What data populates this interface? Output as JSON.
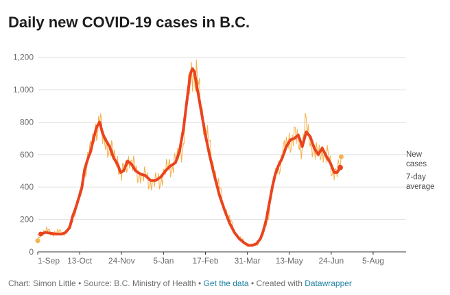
{
  "title": "Daily new COVID-19 cases in B.C.",
  "footer": {
    "credit": "Chart: Simon Little",
    "source": "Source: B.C. Ministry of Health",
    "get_data_link": "Get the data",
    "created_with_prefix": "Created with",
    "datawrapper_link": "Datawrapper",
    "separator": "•"
  },
  "colors": {
    "daily_line": "#f6b24f",
    "average_line": "#e94420",
    "grid": "#dedede",
    "axis": "#333333",
    "link": "#1d81a2"
  },
  "chart_data": {
    "type": "line",
    "title": "Daily new COVID-19 cases in B.C.",
    "xlabel": "",
    "ylabel": "",
    "x_ticks": [
      "1-Sep",
      "13-Oct",
      "24-Nov",
      "5-Jan",
      "17-Feb",
      "31-Mar",
      "13-May",
      "24-Jun",
      "5-Aug"
    ],
    "y_ticks": [
      "0",
      "200",
      "400",
      "600",
      "800",
      "1,000",
      "1,200"
    ],
    "ylim": [
      0,
      1300
    ],
    "x_range_days": [
      0,
      369
    ],
    "x_tick_days": [
      0,
      42,
      84,
      126,
      168,
      210,
      252,
      294,
      336
    ],
    "grid": true,
    "legend_placement": "right-end-labels",
    "series": [
      {
        "name": "New cases",
        "style": "thin",
        "anchors": [
          [
            0,
            60
          ],
          [
            2,
            100
          ],
          [
            5,
            120
          ],
          [
            9,
            135
          ],
          [
            14,
            110
          ],
          [
            20,
            125
          ],
          [
            25,
            115
          ],
          [
            30,
            130
          ],
          [
            35,
            200
          ],
          [
            38,
            270
          ],
          [
            41,
            330
          ],
          [
            44,
            380
          ],
          [
            47,
            500
          ],
          [
            50,
            580
          ],
          [
            53,
            620
          ],
          [
            56,
            700
          ],
          [
            59,
            780
          ],
          [
            62,
            810
          ],
          [
            65,
            700
          ],
          [
            70,
            660
          ],
          [
            75,
            600
          ],
          [
            80,
            560
          ],
          [
            84,
            470
          ],
          [
            88,
            520
          ],
          [
            92,
            580
          ],
          [
            96,
            520
          ],
          [
            100,
            480
          ],
          [
            105,
            470
          ],
          [
            110,
            450
          ],
          [
            115,
            420
          ],
          [
            120,
            440
          ],
          [
            125,
            460
          ],
          [
            130,
            520
          ],
          [
            135,
            540
          ],
          [
            140,
            570
          ],
          [
            145,
            650
          ],
          [
            148,
            800
          ],
          [
            151,
            980
          ],
          [
            154,
            1110
          ],
          [
            156,
            1140
          ],
          [
            158,
            1100
          ],
          [
            162,
            960
          ],
          [
            166,
            820
          ],
          [
            170,
            700
          ],
          [
            175,
            560
          ],
          [
            180,
            430
          ],
          [
            185,
            320
          ],
          [
            190,
            230
          ],
          [
            195,
            160
          ],
          [
            200,
            100
          ],
          [
            205,
            70
          ],
          [
            210,
            45
          ],
          [
            215,
            40
          ],
          [
            220,
            50
          ],
          [
            225,
            90
          ],
          [
            228,
            150
          ],
          [
            231,
            230
          ],
          [
            234,
            350
          ],
          [
            237,
            450
          ],
          [
            240,
            520
          ],
          [
            244,
            570
          ],
          [
            248,
            640
          ],
          [
            252,
            700
          ],
          [
            256,
            690
          ],
          [
            260,
            700
          ],
          [
            264,
            650
          ],
          [
            268,
            760
          ],
          [
            272,
            720
          ],
          [
            276,
            640
          ],
          [
            280,
            580
          ],
          [
            284,
            640
          ],
          [
            288,
            600
          ],
          [
            292,
            560
          ],
          [
            296,
            500
          ],
          [
            300,
            490
          ],
          [
            304,
            540
          ]
        ]
      },
      {
        "name": "7-day average",
        "style": "thick",
        "anchors": [
          [
            3,
            110
          ],
          [
            8,
            120
          ],
          [
            13,
            115
          ],
          [
            18,
            110
          ],
          [
            24,
            110
          ],
          [
            28,
            120
          ],
          [
            32,
            150
          ],
          [
            35,
            220
          ],
          [
            38,
            270
          ],
          [
            41,
            330
          ],
          [
            44,
            390
          ],
          [
            47,
            510
          ],
          [
            50,
            570
          ],
          [
            53,
            620
          ],
          [
            56,
            700
          ],
          [
            59,
            770
          ],
          [
            62,
            800
          ],
          [
            65,
            730
          ],
          [
            68,
            690
          ],
          [
            72,
            650
          ],
          [
            76,
            580
          ],
          [
            80,
            540
          ],
          [
            83,
            490
          ],
          [
            86,
            500
          ],
          [
            90,
            560
          ],
          [
            94,
            540
          ],
          [
            98,
            500
          ],
          [
            103,
            480
          ],
          [
            108,
            470
          ],
          [
            113,
            440
          ],
          [
            118,
            440
          ],
          [
            123,
            460
          ],
          [
            128,
            500
          ],
          [
            133,
            530
          ],
          [
            138,
            550
          ],
          [
            142,
            620
          ],
          [
            146,
            760
          ],
          [
            150,
            960
          ],
          [
            153,
            1100
          ],
          [
            155,
            1130
          ],
          [
            157,
            1110
          ],
          [
            160,
            1000
          ],
          [
            164,
            860
          ],
          [
            168,
            720
          ],
          [
            172,
            600
          ],
          [
            177,
            470
          ],
          [
            182,
            350
          ],
          [
            187,
            260
          ],
          [
            192,
            180
          ],
          [
            197,
            120
          ],
          [
            202,
            80
          ],
          [
            207,
            55
          ],
          [
            211,
            40
          ],
          [
            215,
            40
          ],
          [
            219,
            50
          ],
          [
            223,
            80
          ],
          [
            226,
            130
          ],
          [
            229,
            200
          ],
          [
            232,
            300
          ],
          [
            235,
            400
          ],
          [
            238,
            480
          ],
          [
            241,
            530
          ],
          [
            245,
            580
          ],
          [
            249,
            650
          ],
          [
            253,
            690
          ],
          [
            257,
            700
          ],
          [
            261,
            720
          ],
          [
            265,
            650
          ],
          [
            269,
            740
          ],
          [
            273,
            710
          ],
          [
            277,
            640
          ],
          [
            281,
            600
          ],
          [
            285,
            640
          ],
          [
            289,
            590
          ],
          [
            293,
            550
          ],
          [
            297,
            490
          ],
          [
            300,
            490
          ],
          [
            303,
            520
          ]
        ]
      }
    ],
    "legend_entries": [
      "New cases",
      "7-day average"
    ]
  }
}
